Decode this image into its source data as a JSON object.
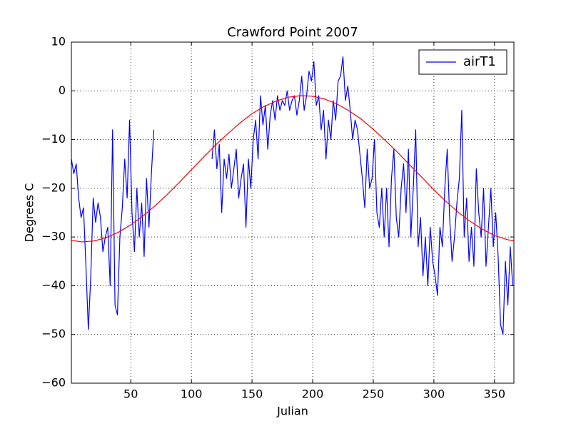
{
  "chart_data": {
    "type": "line",
    "title": "Crawford Point 2007",
    "xlabel": "Julian",
    "ylabel": "Degrees C",
    "xlim": [
      1,
      366
    ],
    "ylim": [
      -60,
      10
    ],
    "xticks": [
      50,
      100,
      150,
      200,
      250,
      300,
      350
    ],
    "yticks": [
      {
        "value": -60,
        "label": "−60"
      },
      {
        "value": -50,
        "label": "−50"
      },
      {
        "value": -40,
        "label": "−40"
      },
      {
        "value": -30,
        "label": "−30"
      },
      {
        "value": -20,
        "label": "−20"
      },
      {
        "value": -10,
        "label": "−10"
      },
      0,
      10
    ],
    "grid": true,
    "legend": "upper right",
    "series": [
      {
        "name": "airT1",
        "color": "#0000ff",
        "x": [
          1,
          3,
          5,
          7,
          9,
          11,
          13,
          15,
          17,
          19,
          21,
          23,
          25,
          27,
          29,
          31,
          33,
          35,
          37,
          39,
          41,
          43,
          45,
          47,
          49,
          51,
          53,
          55,
          57,
          59,
          61,
          63,
          65,
          67,
          69,
          71,
          117,
          119,
          121,
          123,
          125,
          127,
          129,
          131,
          133,
          135,
          137,
          139,
          141,
          143,
          145,
          147,
          149,
          151,
          153,
          155,
          157,
          159,
          161,
          163,
          165,
          167,
          169,
          171,
          173,
          175,
          177,
          179,
          181,
          183,
          185,
          187,
          189,
          191,
          193,
          195,
          197,
          199,
          201,
          203,
          205,
          207,
          209,
          211,
          213,
          215,
          217,
          219,
          221,
          223,
          225,
          227,
          229,
          231,
          233,
          235,
          237,
          239,
          241,
          243,
          245,
          247,
          249,
          251,
          253,
          255,
          257,
          259,
          261,
          263,
          265,
          267,
          269,
          271,
          273,
          275,
          277,
          279,
          281,
          283,
          285,
          287,
          289,
          291,
          293,
          295,
          297,
          299,
          301,
          303,
          305,
          307,
          309,
          311,
          313,
          315,
          317,
          319,
          321,
          323,
          325,
          327,
          329,
          331,
          333,
          335,
          337,
          339,
          341,
          343,
          345,
          347,
          349,
          351,
          353,
          355,
          357,
          359,
          361,
          363,
          365
        ],
        "values": [
          -14,
          -17,
          -15,
          -22,
          -26,
          -24,
          -36,
          -49,
          -38,
          -22,
          -27,
          -23,
          -26,
          -33,
          -30,
          -28,
          -40,
          -8,
          -44,
          -46,
          -30,
          -24,
          -14,
          -22,
          -6,
          -25,
          -33,
          -20,
          -30,
          -23,
          -34,
          -18,
          -28,
          -17,
          -8,
          null,
          -14,
          -8,
          -16,
          -11,
          -25,
          -14,
          -18,
          -13,
          -20,
          -16,
          -12,
          -22,
          -18,
          -15,
          -28,
          -14,
          -20,
          -10,
          -6,
          -14,
          -1,
          -7,
          -3,
          -12,
          -5,
          -2,
          -6,
          -1,
          -4,
          -2,
          -3,
          0,
          -4,
          -2,
          -1,
          -5,
          -2,
          3,
          -4,
          -1,
          4,
          2,
          6,
          -3,
          -1,
          -8,
          -4,
          -14,
          -6,
          -10,
          -2,
          -6,
          2,
          3,
          7,
          -2,
          1,
          -4,
          -10,
          -6,
          -8,
          -13,
          -18,
          -24,
          -12,
          -20,
          -18,
          -10,
          -25,
          -28,
          -20,
          -30,
          -20,
          -32,
          -18,
          -12,
          -26,
          -30,
          -20,
          -15,
          -25,
          -12,
          -30,
          -20,
          -8,
          -32,
          -26,
          -38,
          -30,
          -40,
          -28,
          -35,
          -38,
          -42,
          -28,
          -32,
          -20,
          -12,
          -26,
          -35,
          -30,
          -23,
          -18,
          -4,
          -30,
          -22,
          -35,
          -28,
          -36,
          -16,
          -25,
          -30,
          -20,
          -36,
          -28,
          -20,
          -32,
          -25,
          -34,
          -48,
          -50,
          -35,
          -44,
          -32,
          -40
        ]
      },
      {
        "color": "#ff0000",
        "x": [
          1,
          10,
          20,
          30,
          40,
          50,
          60,
          70,
          80,
          90,
          100,
          110,
          120,
          130,
          140,
          150,
          160,
          170,
          180,
          190,
          200,
          210,
          220,
          230,
          240,
          250,
          260,
          270,
          280,
          290,
          300,
          310,
          320,
          330,
          340,
          350,
          360,
          366
        ],
        "values": [
          -30.7,
          -31.0,
          -30.8,
          -30.1,
          -29.0,
          -27.5,
          -25.7,
          -23.6,
          -21.3,
          -18.8,
          -16.2,
          -13.6,
          -11.1,
          -8.8,
          -6.6,
          -4.7,
          -3.2,
          -2.1,
          -1.3,
          -1.0,
          -1.1,
          -1.7,
          -2.7,
          -4.1,
          -5.8,
          -7.9,
          -10.2,
          -12.6,
          -15.2,
          -17.7,
          -20.3,
          -22.7,
          -24.9,
          -26.8,
          -28.4,
          -29.7,
          -30.5,
          -30.8
        ]
      }
    ]
  }
}
